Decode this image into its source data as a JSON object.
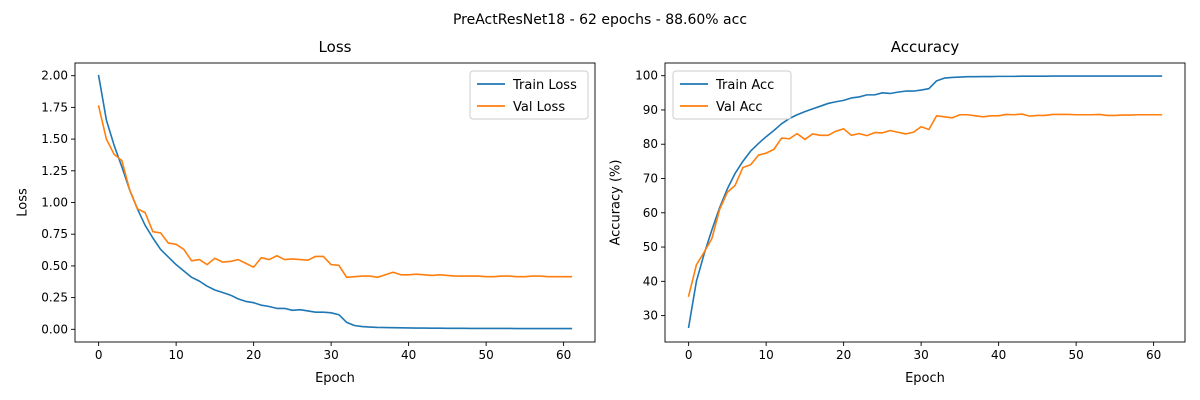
{
  "figure": {
    "suptitle": "PreActResNet18 - 62 epochs - 88.60% acc"
  },
  "colors": {
    "train": "#1f77b4",
    "val": "#ff7f0e"
  },
  "chart_data": [
    {
      "type": "line",
      "title": "Loss",
      "xlabel": "Epoch",
      "ylabel": "Loss",
      "xlim": [
        -3.05,
        64.05
      ],
      "ylim": [
        -0.1,
        2.1
      ],
      "xticks": [
        0,
        10,
        20,
        30,
        40,
        50,
        60
      ],
      "yticks": [
        0.0,
        0.25,
        0.5,
        0.75,
        1.0,
        1.25,
        1.5,
        1.75,
        2.0
      ],
      "ytick_labels": [
        "0.00",
        "0.25",
        "0.50",
        "0.75",
        "1.00",
        "1.25",
        "1.50",
        "1.75",
        "2.00"
      ],
      "legend": "top-right",
      "grid": false,
      "series": [
        {
          "name": "Train Loss",
          "color": "#1f77b4",
          "values": [
            2.0,
            1.65,
            1.45,
            1.28,
            1.1,
            0.95,
            0.82,
            0.72,
            0.63,
            0.57,
            0.51,
            0.46,
            0.41,
            0.38,
            0.34,
            0.31,
            0.29,
            0.27,
            0.24,
            0.22,
            0.21,
            0.19,
            0.18,
            0.165,
            0.165,
            0.15,
            0.155,
            0.145,
            0.135,
            0.135,
            0.13,
            0.115,
            0.055,
            0.03,
            0.022,
            0.018,
            0.015,
            0.014,
            0.013,
            0.012,
            0.011,
            0.01,
            0.01,
            0.009,
            0.009,
            0.008,
            0.008,
            0.008,
            0.007,
            0.007,
            0.007,
            0.007,
            0.007,
            0.007,
            0.006,
            0.006,
            0.006,
            0.006,
            0.006,
            0.006,
            0.006,
            0.006
          ]
        },
        {
          "name": "Val Loss",
          "color": "#ff7f0e",
          "values": [
            1.76,
            1.5,
            1.38,
            1.33,
            1.1,
            0.95,
            0.92,
            0.77,
            0.76,
            0.68,
            0.67,
            0.63,
            0.54,
            0.55,
            0.51,
            0.56,
            0.53,
            0.535,
            0.55,
            0.52,
            0.49,
            0.565,
            0.55,
            0.58,
            0.55,
            0.555,
            0.55,
            0.545,
            0.575,
            0.575,
            0.51,
            0.505,
            0.41,
            0.415,
            0.42,
            0.42,
            0.41,
            0.43,
            0.45,
            0.43,
            0.43,
            0.435,
            0.43,
            0.425,
            0.43,
            0.425,
            0.42,
            0.42,
            0.42,
            0.42,
            0.415,
            0.415,
            0.42,
            0.42,
            0.415,
            0.415,
            0.42,
            0.42,
            0.415,
            0.415,
            0.415,
            0.415
          ]
        }
      ]
    },
    {
      "type": "line",
      "title": "Accuracy",
      "xlabel": "Epoch",
      "ylabel": "Accuracy (%)",
      "xlim": [
        -3.05,
        64.05
      ],
      "ylim": [
        22.3,
        103.7
      ],
      "xticks": [
        0,
        10,
        20,
        30,
        40,
        50,
        60
      ],
      "yticks": [
        30,
        40,
        50,
        60,
        70,
        80,
        90,
        100
      ],
      "ytick_labels": [
        "30",
        "40",
        "50",
        "60",
        "70",
        "80",
        "90",
        "100"
      ],
      "legend": "top-left",
      "grid": false,
      "series": [
        {
          "name": "Train Acc",
          "color": "#1f77b4",
          "values": [
            26.6,
            40.0,
            48.0,
            55.0,
            61.5,
            67.0,
            71.5,
            75.0,
            78.0,
            80.2,
            82.2,
            84.0,
            86.0,
            87.5,
            88.6,
            89.5,
            90.3,
            91.1,
            91.9,
            92.4,
            92.8,
            93.5,
            93.8,
            94.4,
            94.4,
            95.0,
            94.8,
            95.2,
            95.5,
            95.5,
            95.8,
            96.2,
            98.5,
            99.3,
            99.5,
            99.6,
            99.7,
            99.7,
            99.75,
            99.75,
            99.8,
            99.8,
            99.8,
            99.85,
            99.85,
            99.85,
            99.85,
            99.9,
            99.9,
            99.9,
            99.9,
            99.9,
            99.9,
            99.9,
            99.9,
            99.9,
            99.9,
            99.9,
            99.9,
            99.9,
            99.9,
            99.9
          ]
        },
        {
          "name": "Val Acc",
          "color": "#ff7f0e",
          "values": [
            35.7,
            44.8,
            48.5,
            52.5,
            61.0,
            66.0,
            68.0,
            73.2,
            74.0,
            76.8,
            77.4,
            78.5,
            81.8,
            81.6,
            83.1,
            81.4,
            83.0,
            82.6,
            82.6,
            83.8,
            84.5,
            82.6,
            83.1,
            82.5,
            83.4,
            83.3,
            84.0,
            83.5,
            83.0,
            83.5,
            85.1,
            84.3,
            88.3,
            88.0,
            87.7,
            88.6,
            88.6,
            88.3,
            88.0,
            88.3,
            88.3,
            88.7,
            88.6,
            88.8,
            88.2,
            88.4,
            88.4,
            88.7,
            88.7,
            88.7,
            88.6,
            88.6,
            88.6,
            88.7,
            88.4,
            88.4,
            88.5,
            88.5,
            88.6,
            88.6,
            88.6,
            88.6
          ]
        }
      ]
    }
  ]
}
